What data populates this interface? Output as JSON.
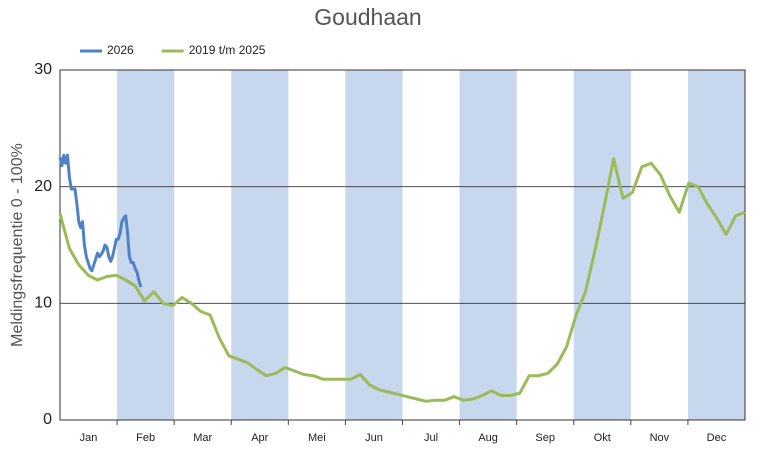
{
  "chart_data": {
    "type": "line",
    "title": "Goudhaan",
    "ylabel": "Meldingsfrequentie 0 - 100%",
    "categories": [
      "Jan",
      "Feb",
      "Mar",
      "Apr",
      "Mei",
      "Jun",
      "Jul",
      "Aug",
      "Sep",
      "Okt",
      "Nov",
      "Dec"
    ],
    "band_color": "#c6d7ee",
    "xlim": [
      1,
      366
    ],
    "ylim": [
      0,
      30
    ],
    "yticks": [
      0,
      10,
      20,
      30
    ],
    "grid": true,
    "legend": "top-left",
    "series": [
      {
        "name": "2026",
        "color": "#4f81c7",
        "x": [
          1,
          2,
          3,
          4,
          5,
          6,
          7,
          8,
          9,
          10,
          11,
          12,
          13,
          14,
          15,
          16,
          17,
          18,
          19,
          20,
          21,
          22,
          23,
          24,
          25,
          26,
          27,
          28,
          29,
          30,
          31,
          32,
          33,
          34,
          35,
          36,
          37,
          38,
          39,
          40,
          41,
          42,
          43,
          44
        ],
        "values": [
          22.5,
          21.8,
          22.7,
          22.0,
          22.7,
          20.8,
          19.8,
          19.8,
          19.8,
          18.5,
          17.0,
          16.5,
          17.0,
          15.0,
          14.0,
          13.5,
          13.0,
          12.8,
          13.3,
          13.8,
          14.3,
          14.0,
          14.2,
          14.5,
          15.0,
          14.8,
          14.0,
          13.6,
          14.0,
          14.7,
          15.5,
          15.5,
          16.0,
          17.0,
          17.3,
          17.5,
          16.0,
          14.0,
          13.5,
          13.5,
          13.0,
          12.7,
          12.0,
          11.4
        ]
      },
      {
        "name": "2019 t/m 2025",
        "color": "#9bbb59",
        "x": [
          1,
          6,
          11,
          16,
          21,
          26,
          31,
          36,
          41,
          46,
          51,
          56,
          61,
          66,
          71,
          76,
          81,
          86,
          91,
          96,
          101,
          106,
          111,
          116,
          121,
          126,
          131,
          136,
          141,
          146,
          151,
          156,
          161,
          166,
          171,
          176,
          181,
          186,
          191,
          196,
          201,
          206,
          211,
          216,
          221,
          226,
          231,
          236,
          241,
          246,
          251,
          256,
          261,
          266,
          271,
          276,
          281,
          286,
          291,
          296,
          301,
          306,
          311,
          316,
          321,
          326,
          331,
          336,
          341,
          346,
          351,
          356,
          361,
          366
        ],
        "values": [
          17.7,
          14.7,
          13.3,
          12.4,
          12.0,
          12.3,
          12.4,
          12.0,
          11.5,
          10.2,
          11.0,
          10.0,
          9.8,
          10.5,
          10.0,
          9.3,
          9.0,
          7.0,
          5.5,
          5.2,
          4.9,
          4.3,
          3.8,
          4.0,
          4.5,
          4.2,
          3.9,
          3.8,
          3.5,
          3.5,
          3.5,
          3.5,
          3.9,
          3.0,
          2.6,
          2.4,
          2.2,
          2.0,
          1.8,
          1.6,
          1.7,
          1.7,
          2.0,
          1.7,
          1.8,
          2.1,
          2.5,
          2.1,
          2.1,
          2.3,
          3.8,
          3.8,
          4.0,
          4.8,
          6.3,
          9.0,
          11.0,
          14.5,
          18.3,
          22.4,
          19.0,
          19.5,
          21.7,
          22.0,
          21.0,
          19.2,
          17.8,
          20.3,
          20.0,
          18.5,
          17.3,
          15.9,
          17.5,
          17.8
        ]
      }
    ]
  }
}
